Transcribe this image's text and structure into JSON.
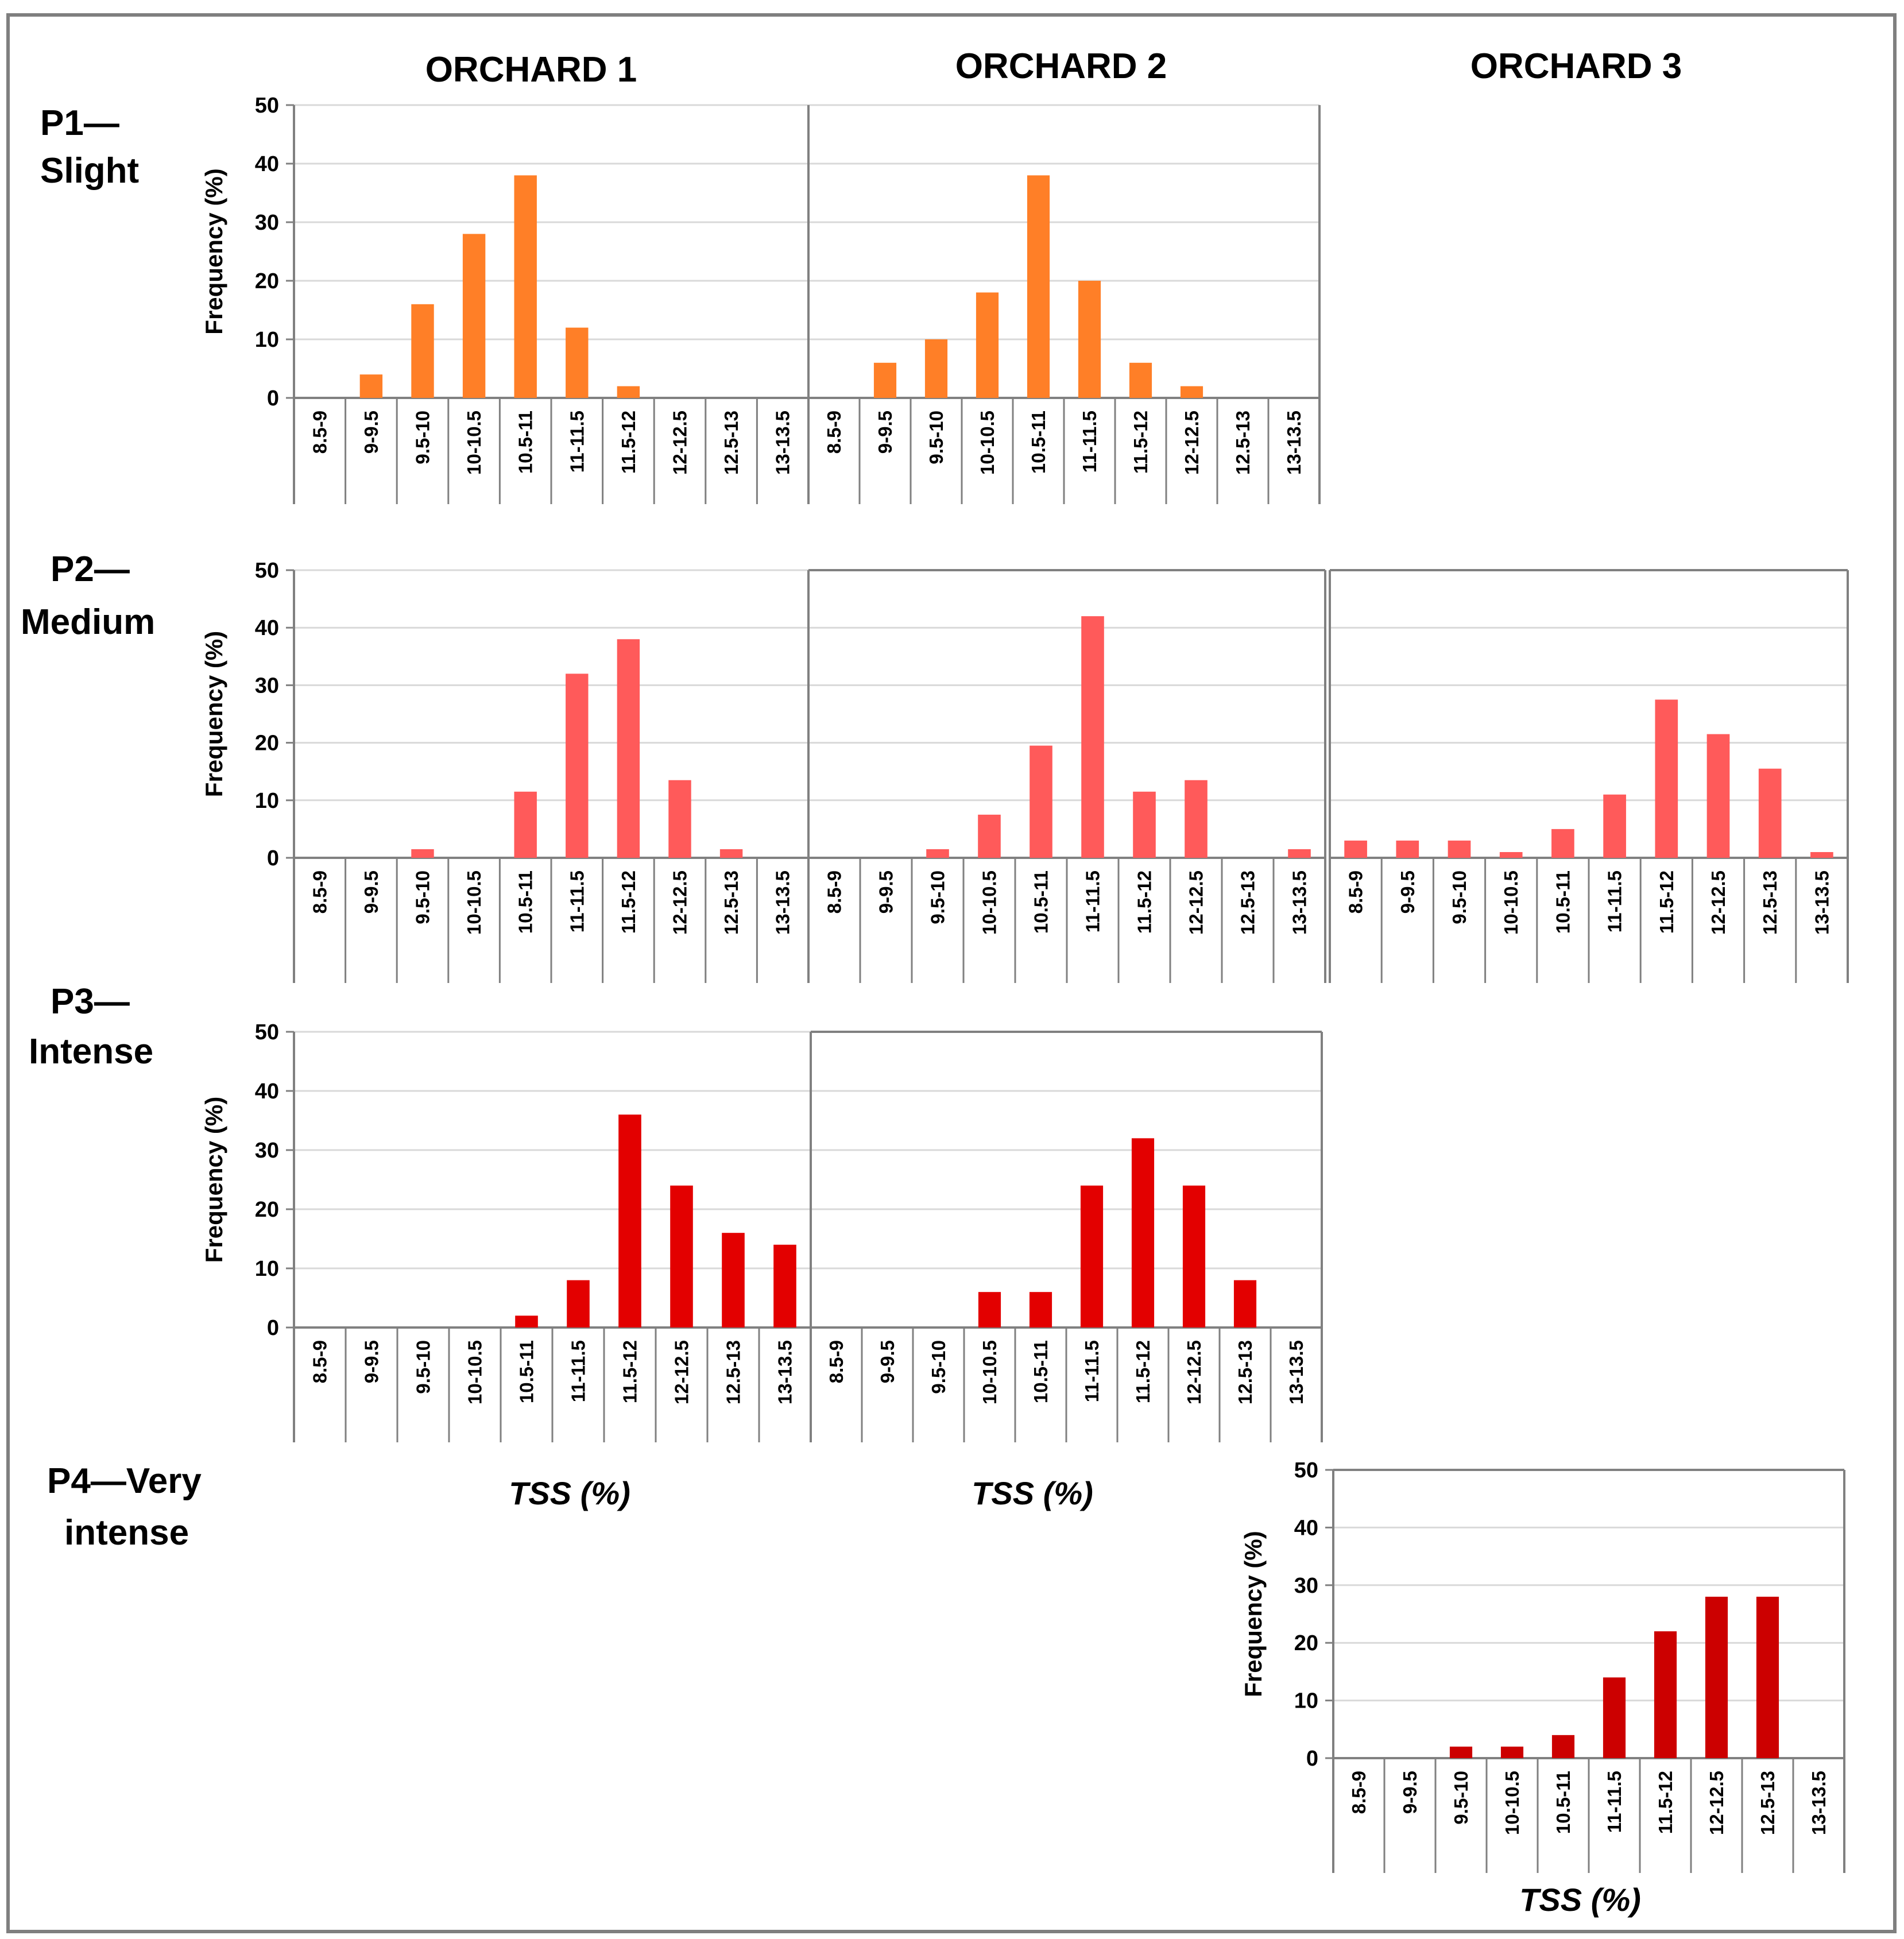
{
  "columns": [
    "ORCHARD 1",
    "ORCHARD 2",
    "ORCHARD 3"
  ],
  "rows": [
    [
      "P1—",
      "Slight"
    ],
    [
      "P2—",
      "Medium"
    ],
    [
      "P3—",
      "Intense"
    ],
    [
      "P4—Very",
      "intense"
    ]
  ],
  "xlabel": "TSS (%)",
  "colors": {
    "p1": "#FF7F27",
    "p2": "#FF5A5A",
    "p3": "#E30000",
    "p4": "#CC0000",
    "grid": "#d9d9d9",
    "axis": "#808080",
    "border": "#7f7f7f"
  },
  "chart_data": [
    {
      "type": "bar",
      "id": "p1-o1",
      "row": "P1",
      "orchard": "ORCHARD 1",
      "ylabel": "Frequency  (%)",
      "ylim": [
        0,
        50
      ],
      "yticks": [
        0,
        10,
        20,
        30,
        40,
        50
      ],
      "categories": [
        "8.5-9",
        "9-9.5",
        "9.5-10",
        "10-10.5",
        "10.5-11",
        "11-11.5",
        "11.5-12",
        "12-12.5",
        "12.5-13",
        "13-13.5"
      ],
      "values": [
        0,
        4,
        16,
        28,
        38,
        12,
        2,
        0,
        0,
        0
      ]
    },
    {
      "type": "bar",
      "id": "p1-o2",
      "row": "P1",
      "orchard": "ORCHARD 2",
      "ylabel": "",
      "ylim": [
        0,
        50
      ],
      "yticks": [],
      "categories": [
        "8.5-9",
        "9-9.5",
        "9.5-10",
        "10-10.5",
        "10.5-11",
        "11-11.5",
        "11.5-12",
        "12-12.5",
        "12.5-13",
        "13-13.5"
      ],
      "values": [
        0,
        6,
        10,
        18,
        38,
        20,
        6,
        2,
        0,
        0
      ]
    },
    {
      "type": "bar",
      "id": "p2-o1",
      "row": "P2",
      "orchard": "ORCHARD 1",
      "ylabel": "Frequency (%)",
      "ylim": [
        0,
        50
      ],
      "yticks": [
        0,
        10,
        20,
        30,
        40,
        50
      ],
      "categories": [
        "8.5-9",
        "9-9.5",
        "9.5-10",
        "10-10.5",
        "10.5-11",
        "11-11.5",
        "11.5-12",
        "12-12.5",
        "12.5-13",
        "13-13.5"
      ],
      "values": [
        0,
        0,
        1.5,
        0,
        11.5,
        32,
        38,
        13.5,
        1.5,
        0
      ]
    },
    {
      "type": "bar",
      "id": "p2-o2",
      "row": "P2",
      "orchard": "ORCHARD 2",
      "ylabel": "",
      "ylim": [
        0,
        50
      ],
      "yticks": [],
      "categories": [
        "8.5-9",
        "9-9.5",
        "9.5-10",
        "10-10.5",
        "10.5-11",
        "11-11.5",
        "11.5-12",
        "12-12.5",
        "12.5-13",
        "13-13.5"
      ],
      "values": [
        0,
        0,
        1.5,
        7.5,
        19.5,
        42,
        11.5,
        13.5,
        0,
        1.5
      ]
    },
    {
      "type": "bar",
      "id": "p2-o3",
      "row": "P2",
      "orchard": "ORCHARD 3",
      "ylabel": "",
      "ylim": [
        0,
        50
      ],
      "yticks": [],
      "categories": [
        "8.5-9",
        "9-9.5",
        "9.5-10",
        "10-10.5",
        "10.5-11",
        "11-11.5",
        "11.5-12",
        "12-12.5",
        "12.5-13",
        "13-13.5"
      ],
      "values": [
        3,
        3,
        3,
        1,
        5,
        11,
        27.5,
        21.5,
        15.5,
        1
      ]
    },
    {
      "type": "bar",
      "id": "p3-o1",
      "row": "P3",
      "orchard": "ORCHARD 1",
      "ylabel": "Frequency (%)",
      "ylim": [
        0,
        50
      ],
      "yticks": [
        0,
        10,
        20,
        30,
        40,
        50
      ],
      "categories": [
        "8.5-9",
        "9-9.5",
        "9.5-10",
        "10-10.5",
        "10.5-11",
        "11-11.5",
        "11.5-12",
        "12-12.5",
        "12.5-13",
        "13-13.5"
      ],
      "values": [
        0,
        0,
        0,
        0,
        2,
        8,
        36,
        24,
        16,
        14
      ]
    },
    {
      "type": "bar",
      "id": "p3-o2",
      "row": "P3",
      "orchard": "ORCHARD 2",
      "ylabel": "",
      "ylim": [
        0,
        50
      ],
      "yticks": [],
      "categories": [
        "8.5-9",
        "9-9.5",
        "9.5-10",
        "10-10.5",
        "10.5-11",
        "11-11.5",
        "11.5-12",
        "12-12.5",
        "12.5-13",
        "13-13.5"
      ],
      "values": [
        0,
        0,
        0,
        6,
        6,
        24,
        32,
        24,
        8,
        0
      ]
    },
    {
      "type": "bar",
      "id": "p4-o3",
      "row": "P4",
      "orchard": "ORCHARD 3",
      "ylabel": "Frequency (%)",
      "ylim": [
        0,
        50
      ],
      "yticks": [
        0,
        10,
        20,
        30,
        40,
        50
      ],
      "categories": [
        "8.5-9",
        "9-9.5",
        "9.5-10",
        "10-10.5",
        "10.5-11",
        "11-11.5",
        "11.5-12",
        "12-12.5",
        "12.5-13",
        "13-13.5"
      ],
      "values": [
        0,
        0,
        2,
        2,
        4,
        14,
        22,
        28,
        28,
        0
      ]
    }
  ]
}
